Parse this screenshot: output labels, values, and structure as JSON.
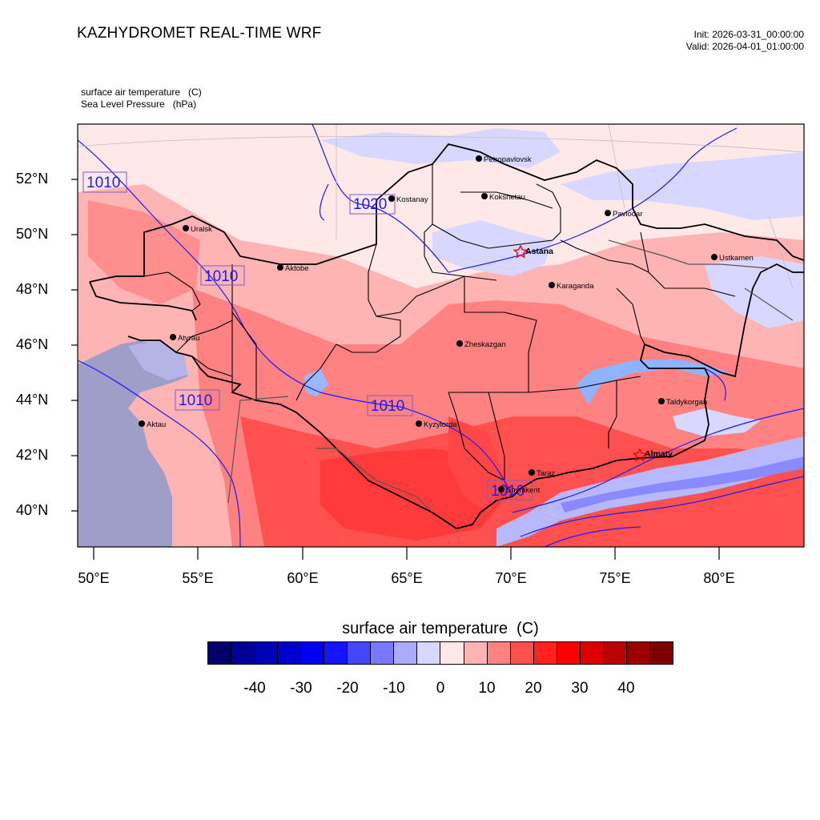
{
  "header": {
    "title": "KAZHYDROMET REAL-TIME WRF",
    "init": "Init: 2026-03-31_00:00:00",
    "valid": "Valid: 2026-04-01_01:00:00"
  },
  "variables": [
    "surface air temperature   (C)",
    "Sea Level Pressure   (hPa)"
  ],
  "map": {
    "lat_labels": [
      "52°N",
      "50°N",
      "48°N",
      "46°N",
      "44°N",
      "42°N",
      "40°N"
    ],
    "lon_labels": [
      "50°E",
      "55°E",
      "60°E",
      "65°E",
      "70°E",
      "75°E",
      "80°E"
    ],
    "cities": [
      {
        "name": "Petropavlovsk",
        "capital": false
      },
      {
        "name": "Kostanay",
        "capital": false
      },
      {
        "name": "Kokshetau",
        "capital": false
      },
      {
        "name": "Pavlodar",
        "capital": false
      },
      {
        "name": "Uralsk",
        "capital": false
      },
      {
        "name": "Astana",
        "capital": true
      },
      {
        "name": "Ustkamen",
        "capital": false
      },
      {
        "name": "Aktobe",
        "capital": false
      },
      {
        "name": "Karaganda",
        "capital": false
      },
      {
        "name": "Atyrau",
        "capital": false
      },
      {
        "name": "Zheskazgan",
        "capital": false
      },
      {
        "name": "Taldykorgan",
        "capital": false
      },
      {
        "name": "Aktau",
        "capital": false
      },
      {
        "name": "Kyzylorda",
        "capital": false
      },
      {
        "name": "Almaty",
        "capital": true
      },
      {
        "name": "Taraz",
        "capital": false
      },
      {
        "name": "Shymkent",
        "capital": false
      }
    ],
    "isobar_labels": [
      "1010",
      "1020",
      "1010",
      "1010",
      "1010",
      "1010"
    ]
  },
  "colorbar": {
    "title": "surface air temperature  (C)",
    "colors": [
      "#00006b",
      "#000096",
      "#0000b4",
      "#0000cd",
      "#0000f0",
      "#1414ff",
      "#4646ff",
      "#7878ff",
      "#aaaaff",
      "#d7d7ff",
      "#ffe8e8",
      "#ffb4b4",
      "#ff8282",
      "#ff5050",
      "#ff2020",
      "#ff0000",
      "#dc0000",
      "#bc0000",
      "#9a0000",
      "#7c0000"
    ],
    "ticks": [
      "-40",
      "-30",
      "-20",
      "-10",
      "0",
      "10",
      "20",
      "30",
      "40"
    ]
  }
}
